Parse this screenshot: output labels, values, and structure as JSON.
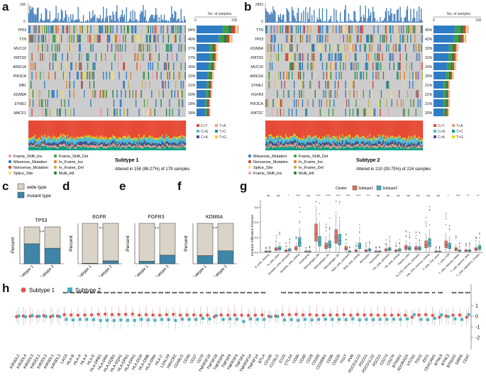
{
  "panel_a": {
    "letter": "a",
    "tmb_axis_max": "198",
    "tmb_axis_min": "0",
    "samples_axis": [
      "0",
      "100"
    ],
    "samples_axis_label": "No. of samples",
    "genes": [
      {
        "name": "TP53",
        "pct": "54%"
      },
      {
        "name": "TTN",
        "pct": "46%"
      },
      {
        "name": "MUC16",
        "pct": "27%"
      },
      {
        "name": "KMT2D",
        "pct": "27%"
      },
      {
        "name": "ARID1A",
        "pct": "25%"
      },
      {
        "name": "PIK3CA",
        "pct": "22%"
      },
      {
        "name": "RB1",
        "pct": "21%"
      },
      {
        "name": "KDM6A",
        "pct": "20%"
      },
      {
        "name": "SYNE1",
        "pct": "18%"
      },
      {
        "name": "MACF1",
        "pct": "18%"
      }
    ],
    "subtype_title": "Subtype 1",
    "altered_text": "Altered in 158 (88.27%) of 179 samples",
    "legend": [
      "Frame_Shift_Ins",
      "Missense_Mutation",
      "Nonsense_Mutation",
      "Splice_Site",
      "Frame_Shift_Del",
      "In_Frame_Ins",
      "In_Frame_Del",
      "Multi_Hit"
    ],
    "titv": [
      "C>T",
      "C>G",
      "C>A",
      "T>A",
      "T>C",
      "T>G"
    ]
  },
  "panel_b": {
    "letter": "b",
    "tmb_axis_max": "2883",
    "tmb_axis_min": "0",
    "samples_axis": [
      "0",
      "100"
    ],
    "samples_axis_label": "No. of samples",
    "genes": [
      {
        "name": "TTN",
        "pct": "45%"
      },
      {
        "name": "TP53",
        "pct": "42%"
      },
      {
        "name": "KDM6A",
        "pct": "32%"
      },
      {
        "name": "KMT2D",
        "pct": "31%"
      },
      {
        "name": "MUC16",
        "pct": "29%"
      },
      {
        "name": "ARID1A",
        "pct": "26%"
      },
      {
        "name": "SYNE1",
        "pct": "21%"
      },
      {
        "name": "FGFR3",
        "pct": "21%"
      },
      {
        "name": "PIK3CA",
        "pct": "21%"
      },
      {
        "name": "KMT2C",
        "pct": "20%"
      }
    ],
    "subtype_title": "Subtype 2",
    "altered_text": "Altered in 210 (93.75%) of 224 samples",
    "legend": [
      "Missense_Mutation",
      "Nonsense_Mutation",
      "Splice_Site",
      "Frame_Shift_Ins",
      "Frame_Shift_Del",
      "In_Frame_Ins",
      "In_Frame_Del",
      "Multi_Hit"
    ],
    "titv": [
      "C>T",
      "C>G",
      "C>A",
      "T>A",
      "T>C",
      "T>G"
    ]
  },
  "mutation_colors": {
    "Missense_Mutation": "#2e7cc4",
    "Nonsense_Mutation": "#c9463d",
    "Frame_Shift_Del": "#3f9e4a",
    "Frame_Shift_Ins": "#e8a0b4",
    "In_Frame_Ins": "#e67d2b",
    "In_Frame_Del": "#b9b34a",
    "Splice_Site": "#f0e07a",
    "Multi_Hit": "#2a7d3b"
  },
  "bars": {
    "legend_wild": "wide type",
    "legend_mutant": "mutant type",
    "ylabel": "Percent",
    "categories": [
      "Subtype 1",
      "Subtype 2"
    ],
    "colors": {
      "wild": "#d9d4c7",
      "mutant": "#3f85a8"
    },
    "panels": [
      {
        "letter": "c",
        "title": "TP53",
        "fisher": "Fisher,p = 0.045",
        "mutant": [
          0.54,
          0.42
        ]
      },
      {
        "letter": "d",
        "title": "EGFR",
        "fisher": "Fisher,p = 0.0045",
        "mutant": [
          0.01,
          0.07
        ]
      },
      {
        "letter": "e",
        "title": "FGFR3",
        "fisher": "Fisher,p < 0.001",
        "mutant": [
          0.06,
          0.21
        ]
      },
      {
        "letter": "f",
        "title": "KDM6A",
        "fisher": "Fisher,p = 0.013",
        "mutant": [
          0.2,
          0.32
        ]
      }
    ]
  },
  "panel_g": {
    "letter": "g",
    "legend_title": "Cluster",
    "legend_items": [
      "Subtype1",
      "Subtype2"
    ],
    "colors": [
      "#e0705e",
      "#45b0c0"
    ],
    "ylabel": "Immune Infiltration Fraction",
    "yticks": [
      "0.0",
      "0.2",
      "0.4",
      "0.6"
    ],
    "cells": [
      {
        "name": "B_cells_memory",
        "sig": "ns",
        "m1": 0.01,
        "m2": 0.01
      },
      {
        "name": "B_cells_naive",
        "sig": "ns",
        "m1": 0.04,
        "m2": 0.05
      },
      {
        "name": "Dendritic_cells_activated",
        "sig": "*",
        "m1": 0.02,
        "m2": 0.03
      },
      {
        "name": "Dendritic_cells_resting",
        "sig": "****",
        "m1": 0.05,
        "m2": 0.13
      },
      {
        "name": "Eosinophils",
        "sig": "ns",
        "m1": 0.01,
        "m2": 0.01
      },
      {
        "name": "Macrophages_M0",
        "sig": "****",
        "m1": 0.25,
        "m2": 0.14
      },
      {
        "name": "Macrophages_M1",
        "sig": "****",
        "m1": 0.08,
        "m2": 0.1
      },
      {
        "name": "Macrophages_M2",
        "sig": "****",
        "m1": 0.2,
        "m2": 0.16
      },
      {
        "name": "Mast_cells_activated",
        "sig": "****",
        "m1": 0.05,
        "m2": 0.01
      },
      {
        "name": "Mast_cells_resting",
        "sig": "****",
        "m1": 0.02,
        "m2": 0.08
      },
      {
        "name": "Monocytes",
        "sig": "***",
        "m1": 0.02,
        "m2": 0.03
      },
      {
        "name": "Neutrophils",
        "sig": "ns",
        "m1": 0.01,
        "m2": 0.01
      },
      {
        "name": "NK_cells_activated",
        "sig": "ns",
        "m1": 0.03,
        "m2": 0.04
      },
      {
        "name": "NK_cells_resting",
        "sig": "ns",
        "m1": 0.02,
        "m2": 0.03
      },
      {
        "name": "Plasma_cells",
        "sig": "ns",
        "m1": 0.06,
        "m2": 0.05
      },
      {
        "name": "T_cells_CD4_memory_activated",
        "sig": "ns",
        "m1": 0.05,
        "m2": 0.05
      },
      {
        "name": "T_cells_CD4_memory_resting",
        "sig": "ns",
        "m1": 0.1,
        "m2": 0.12
      },
      {
        "name": "T_cells_CD4_naive",
        "sig": "ns",
        "m1": 0.01,
        "m2": 0.01
      },
      {
        "name": "T_cells_CD8",
        "sig": "*",
        "m1": 0.1,
        "m2": 0.08
      },
      {
        "name": "T_cells_follicular_helper",
        "sig": "****",
        "m1": 0.04,
        "m2": 0.02
      },
      {
        "name": "T_cells_gamma_delta",
        "sig": "**",
        "m1": 0.02,
        "m2": 0.02
      },
      {
        "name": "T_cells_regulatory_(Tregs)",
        "sig": "**",
        "m1": 0.04,
        "m2": 0.06
      }
    ]
  },
  "panel_h": {
    "letter": "h",
    "legend_items": [
      "Subtype 1",
      "Subtype 2"
    ],
    "colors": [
      "#e0574b",
      "#45b0c0"
    ],
    "yticks": [
      "1",
      "0",
      "-1",
      "-2"
    ],
    "genes": [
      {
        "name": "KIR3DL2",
        "sig": "",
        "s1": -0.05,
        "s2": 0.02
      },
      {
        "name": "KIR2DL4",
        "sig": "",
        "s1": 0.02,
        "s2": -0.05
      },
      {
        "name": "KIR2DL3",
        "sig": "",
        "s1": 0.0,
        "s2": 0.05
      },
      {
        "name": "KIR2DL1",
        "sig": "",
        "s1": -0.03,
        "s2": 0.0
      },
      {
        "name": "KIR2DL1",
        "sig": "",
        "s1": 0.05,
        "s2": -0.02
      },
      {
        "name": "KIR3DL1",
        "sig": "",
        "s1": -0.05,
        "s2": 0.03
      },
      {
        "name": "KIR3DL3",
        "sig": "",
        "s1": 0.02,
        "s2": -0.04
      },
      {
        "name": "LAG3",
        "sig": "***",
        "s1": 0.15,
        "s2": -0.3
      },
      {
        "name": "HLA-B",
        "sig": "***",
        "s1": 0.12,
        "s2": -0.35
      },
      {
        "name": "HLA-A",
        "sig": "***",
        "s1": 0.1,
        "s2": -0.3
      },
      {
        "name": "HLA-F",
        "sig": "***",
        "s1": 0.12,
        "s2": -0.3
      },
      {
        "name": "HLA-E",
        "sig": "***",
        "s1": 0.13,
        "s2": -0.32
      },
      {
        "name": "HLA-DRB1",
        "sig": "***",
        "s1": 0.18,
        "s2": -0.4
      },
      {
        "name": "HLA-DRA",
        "sig": "***",
        "s1": 0.2,
        "s2": -0.38
      },
      {
        "name": "HLA-DQB1",
        "sig": "***",
        "s1": 0.15,
        "s2": -0.4
      },
      {
        "name": "HLA-DQA1",
        "sig": "***",
        "s1": 0.17,
        "s2": -0.35
      },
      {
        "name": "HLA-DPB1",
        "sig": "***",
        "s1": 0.18,
        "s2": -0.38
      },
      {
        "name": "HLA-DPA1",
        "sig": "***",
        "s1": 0.2,
        "s2": -0.4
      },
      {
        "name": "HLA-DOA",
        "sig": "***",
        "s1": 0.1,
        "s2": -0.3
      },
      {
        "name": "HLA-DMB",
        "sig": "***",
        "s1": 0.15,
        "s2": -0.35
      },
      {
        "name": "HLA-DMA",
        "sig": "***",
        "s1": 0.12,
        "s2": -0.38
      },
      {
        "name": "HLA-C",
        "sig": "***",
        "s1": 0.1,
        "s2": -0.3
      },
      {
        "name": "LGALS9",
        "sig": "***",
        "s1": 0.15,
        "s2": -0.32
      },
      {
        "name": "HAVCR2",
        "sig": "***",
        "s1": 0.18,
        "s2": -0.4
      },
      {
        "name": "CD48LG",
        "sig": "***",
        "s1": 0.1,
        "s2": -0.28
      },
      {
        "name": "CD40",
        "sig": "***",
        "s1": 0.12,
        "s2": -0.3
      },
      {
        "name": "CD27",
        "sig": "***",
        "s1": 0.13,
        "s2": -0.3
      },
      {
        "name": "CD70",
        "sig": "**",
        "s1": 0.08,
        "s2": -0.2
      },
      {
        "name": "TNFRSF18",
        "sig": "***",
        "s1": 0.1,
        "s2": -0.25
      },
      {
        "name": "TNFSF18",
        "sig": "***",
        "s1": -0.05,
        "s2": 0.05
      },
      {
        "name": "TNFRSF9",
        "sig": "***",
        "s1": 0.12,
        "s2": -0.3
      },
      {
        "name": "TNFSF9",
        "sig": "***",
        "s1": 0.1,
        "s2": -0.25
      },
      {
        "name": "TNFRSF4",
        "sig": "***",
        "s1": 0.12,
        "s2": -0.28
      },
      {
        "name": "TNFSF4",
        "sig": "***",
        "s1": 0.1,
        "s2": -0.5
      },
      {
        "name": "TNFRSF14",
        "sig": "***",
        "s1": 0.08,
        "s2": -0.25
      },
      {
        "name": "TNFSF14",
        "sig": "***",
        "s1": 0.1,
        "s2": -0.3
      },
      {
        "name": "BTLA",
        "sig": "***",
        "s1": 0.12,
        "s2": -0.3
      },
      {
        "name": "CD160",
        "sig": "",
        "s1": 0.0,
        "s2": -0.05
      },
      {
        "name": "ICOSLG",
        "sig": "",
        "s1": 0.02,
        "s2": -0.02
      },
      {
        "name": "ICOS",
        "sig": "***",
        "s1": 0.15,
        "s2": -0.35
      },
      {
        "name": "CTLA4",
        "sig": "***",
        "s1": 0.15,
        "s2": -0.32
      },
      {
        "name": "CD86",
        "sig": "***",
        "s1": 0.18,
        "s2": -0.38
      },
      {
        "name": "CD80",
        "sig": "***",
        "s1": 0.12,
        "s2": -0.3
      },
      {
        "name": "CD28",
        "sig": "***",
        "s1": 0.15,
        "s2": -0.35
      },
      {
        "name": "CD200",
        "sig": "***",
        "s1": 0.1,
        "s2": -0.3
      },
      {
        "name": "CD200R1",
        "sig": "***",
        "s1": 0.1,
        "s2": -0.28
      },
      {
        "name": "CD96",
        "sig": "***",
        "s1": 0.12,
        "s2": -0.3
      },
      {
        "name": "CD226",
        "sig": "***",
        "s1": 0.12,
        "s2": -0.3
      },
      {
        "name": "TIGIT",
        "sig": "***",
        "s1": 0.15,
        "s2": -0.32
      },
      {
        "name": "PVR",
        "sig": "***",
        "s1": 0.1,
        "s2": -0.25
      },
      {
        "name": "PDCD1LG2",
        "sig": "***",
        "s1": 0.15,
        "s2": -0.35
      },
      {
        "name": "PDCD1",
        "sig": "***",
        "s1": 0.12,
        "s2": -0.3
      },
      {
        "name": "PDCD1LG2",
        "sig": "***",
        "s1": 0.13,
        "s2": -0.32
      },
      {
        "name": "PDCD1",
        "sig": "***",
        "s1": 0.1,
        "s2": -0.3
      },
      {
        "name": "CD274",
        "sig": "***",
        "s1": 0.12,
        "s2": -0.3
      },
      {
        "name": "CD276",
        "sig": "***",
        "s1": 0.1,
        "s2": -0.28
      },
      {
        "name": "BTN3A1",
        "sig": "***",
        "s1": 0.12,
        "s2": -0.3
      },
      {
        "name": "ADORA2A",
        "sig": "***",
        "s1": 0.1,
        "s2": -0.25
      },
      {
        "name": "VTCN1",
        "sig": "***",
        "s1": -0.1,
        "s2": 0.15
      },
      {
        "name": "TDO2",
        "sig": "***",
        "s1": 0.12,
        "s2": -0.3
      },
      {
        "name": "IDO1",
        "sig": "***",
        "s1": 0.15,
        "s2": -0.32
      },
      {
        "name": "CEACAM1",
        "sig": "**",
        "s1": 0.08,
        "s2": -0.2
      },
      {
        "name": "BTNL9",
        "sig": "***",
        "s1": -0.1,
        "s2": 0.12
      },
      {
        "name": "BTNL3",
        "sig": "",
        "s1": 0.02,
        "s2": -0.03
      },
      {
        "name": "BTN2A2",
        "sig": "***",
        "s1": 0.1,
        "s2": -0.25
      },
      {
        "name": "SIRPA",
        "sig": "***",
        "s1": 0.12,
        "s2": -0.3
      },
      {
        "name": "CD47",
        "sig": "***",
        "s1": -0.1,
        "s2": 0.15
      }
    ]
  }
}
